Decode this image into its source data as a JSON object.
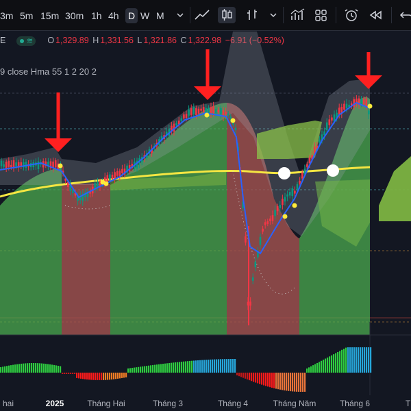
{
  "toolbar": {
    "timeframes": [
      "3m",
      "5m",
      "15m",
      "30m",
      "1h",
      "4h",
      "D",
      "W",
      "M"
    ],
    "active_timeframe": "D",
    "icons": [
      "chevron-down-icon",
      "line-chart-icon",
      "candlestick-icon",
      "bar-chart-icon",
      "chevron-down-icon",
      "indicators-icon",
      "layout-grid-icon",
      "replay-alert-icon",
      "rewind-icon",
      "undo-icon"
    ]
  },
  "legend": {
    "symbol_fragment": "E",
    "o_label": "O",
    "o_value": "1,329.89",
    "h_label": "H",
    "h_value": "1,331.56",
    "l_label": "L",
    "l_value": "1,321.86",
    "c_label": "C",
    "c_value": "1,322.98",
    "change": "−6.91 (−0.52%)"
  },
  "indicator": {
    "text": "9 close Hma 55 1 2 20 2"
  },
  "x_axis": {
    "labels": [
      "i hai",
      "2025",
      "Tháng Hai",
      "Tháng 3",
      "Tháng 4",
      "Tháng Năm",
      "Tháng 6",
      "T"
    ],
    "bold": [
      false,
      true,
      false,
      false,
      false,
      false,
      false,
      false
    ]
  },
  "colors": {
    "background": "#131722",
    "up": "#089981",
    "down": "#f23645",
    "bull_zone": "#4caf50",
    "bear_zone": "#a1524f",
    "hma": "#2962ff",
    "ma_long": "#f5e642",
    "annotation_arrow": "#ff2020"
  },
  "chart_data": {
    "type": "candlestick",
    "annotations": {
      "down_arrows": 3,
      "white_dots": 2
    },
    "histogram": {
      "type": "bar",
      "note": "momentum oscillator below price pane"
    }
  }
}
